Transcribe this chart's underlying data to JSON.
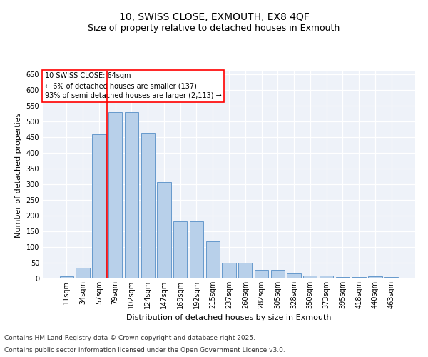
{
  "title": "10, SWISS CLOSE, EXMOUTH, EX8 4QF",
  "subtitle": "Size of property relative to detached houses in Exmouth",
  "xlabel": "Distribution of detached houses by size in Exmouth",
  "ylabel": "Number of detached properties",
  "categories": [
    "11sqm",
    "34sqm",
    "57sqm",
    "79sqm",
    "102sqm",
    "124sqm",
    "147sqm",
    "169sqm",
    "192sqm",
    "215sqm",
    "237sqm",
    "260sqm",
    "282sqm",
    "305sqm",
    "328sqm",
    "350sqm",
    "373sqm",
    "395sqm",
    "418sqm",
    "440sqm",
    "463sqm"
  ],
  "bar_values": [
    7,
    35,
    460,
    530,
    530,
    465,
    308,
    183,
    183,
    118,
    50,
    50,
    27,
    27,
    15,
    9,
    9,
    5,
    5,
    7,
    5
  ],
  "bar_color": "#b8d0ea",
  "bar_edge_color": "#6699cc",
  "vline_index": 2.48,
  "vline_color": "red",
  "annotation_text": "10 SWISS CLOSE: 64sqm\n← 6% of detached houses are smaller (137)\n93% of semi-detached houses are larger (2,113) →",
  "ylim": [
    0,
    660
  ],
  "yticks": [
    0,
    50,
    100,
    150,
    200,
    250,
    300,
    350,
    400,
    450,
    500,
    550,
    600,
    650
  ],
  "background_color": "#eef2f9",
  "footer_line1": "Contains HM Land Registry data © Crown copyright and database right 2025.",
  "footer_line2": "Contains public sector information licensed under the Open Government Licence v3.0.",
  "title_fontsize": 10,
  "subtitle_fontsize": 9,
  "xlabel_fontsize": 8,
  "ylabel_fontsize": 8,
  "tick_fontsize": 7,
  "footer_fontsize": 6.5
}
